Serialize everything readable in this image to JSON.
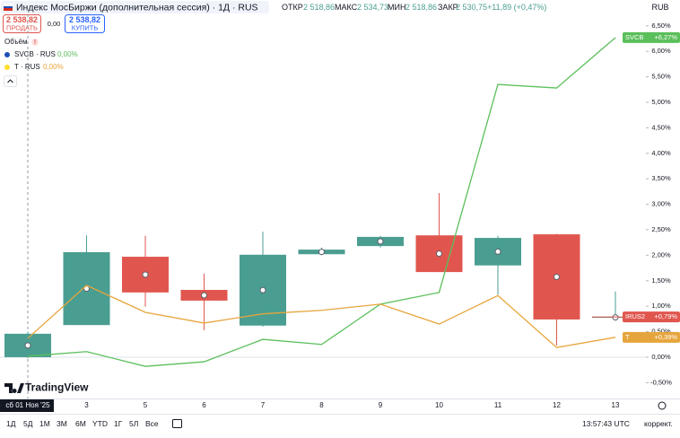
{
  "header": {
    "title": "Индекс МосБиржи (дополнительная сессия) · 1Д · RUS",
    "open_label": "ОТКР",
    "open": "2 518,86",
    "high_label": "МАКС",
    "high": "2 534,73",
    "low_label": "МИН",
    "low": "2 518,86",
    "close_label": "ЗАКР",
    "close": "2 530,75",
    "change": "+11,89 (+0,47%)",
    "currency": "RUB"
  },
  "trade": {
    "sell_price": "2 538,82",
    "sell": "ПРОДАТЬ",
    "spread": "0,00",
    "buy_price": "2 538,82",
    "buy": "КУПИТЬ"
  },
  "legend": {
    "volume": "Объём",
    "items": [
      {
        "name": "SVCB · RUS",
        "value": "0,00%"
      },
      {
        "name": "T · RUS",
        "value": "0,00%"
      }
    ]
  },
  "branding": "TradingView",
  "footer": {
    "periods": [
      "1Д",
      "5Д",
      "1М",
      "3М",
      "6М",
      "YTD",
      "1Г",
      "5Л",
      "Все"
    ],
    "time": "13:57:43 UTC",
    "adjust": "коррект."
  },
  "chart_data": {
    "type": "candlestick",
    "categories": [
      "сб 01 Ноя '25",
      "3",
      "5",
      "6",
      "7",
      "8",
      "9",
      "10",
      "11",
      "12",
      "13"
    ],
    "candles": {
      "name": "IRUS2",
      "tag_label": "+0,79%",
      "up_color": "#4a9e91",
      "down_color": "#e0564f",
      "open": [
        0.0,
        0.63,
        1.97,
        1.32,
        0.62,
        2.02,
        2.18,
        2.39,
        1.8,
        2.41,
        0.79
      ],
      "high": [
        0.5,
        2.39,
        2.38,
        1.64,
        2.46,
        2.15,
        2.38,
        3.22,
        2.38,
        2.42,
        1.29
      ],
      "low": [
        -0.02,
        0.63,
        0.99,
        0.53,
        0.6,
        2.0,
        2.15,
        1.67,
        1.23,
        0.23,
        0.79
      ],
      "close": [
        0.46,
        2.06,
        1.27,
        1.11,
        2.01,
        2.11,
        2.36,
        1.67,
        2.34,
        0.74,
        0.79
      ]
    },
    "series": [
      {
        "name": "SVCB",
        "tag_label": "+6,27%",
        "color": "#5bbf5b",
        "values": [
          0.02,
          0.11,
          -0.18,
          -0.09,
          0.35,
          0.25,
          1.04,
          1.27,
          5.35,
          5.28,
          6.27
        ]
      },
      {
        "name": "T",
        "tag_label": "+0,39%",
        "color": "#e6a53c",
        "values": [
          0.37,
          1.41,
          0.88,
          0.67,
          0.85,
          0.92,
          1.04,
          0.65,
          1.21,
          0.19,
          0.39
        ]
      }
    ],
    "ylim": [
      -0.74,
      6.76
    ],
    "yticks": [
      {
        "value": -0.5,
        "label": "-0,50%"
      },
      {
        "value": 0,
        "label": "0,00%"
      },
      {
        "value": 0.5,
        "label": "0,50%"
      },
      {
        "value": 1,
        "label": "1,00%"
      },
      {
        "value": 1.5,
        "label": "1,50%"
      },
      {
        "value": 2,
        "label": "2,00%"
      },
      {
        "value": 2.5,
        "label": "2,50%"
      },
      {
        "value": 3,
        "label": "3,00%"
      },
      {
        "value": 3.5,
        "label": "3,50%"
      },
      {
        "value": 4,
        "label": "4,00%"
      },
      {
        "value": 4.5,
        "label": "4,50%"
      },
      {
        "value": 5,
        "label": "5,00%"
      },
      {
        "value": 5.5,
        "label": "5,50%"
      },
      {
        "value": 6,
        "label": "6,00%"
      },
      {
        "value": 6.5,
        "label": "6,50%"
      }
    ],
    "grid": false
  }
}
